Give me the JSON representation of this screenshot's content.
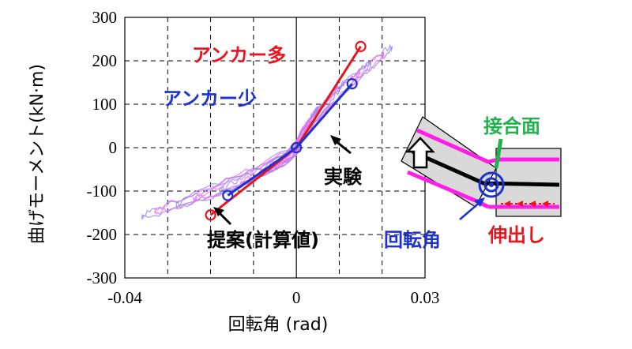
{
  "chart_data": {
    "type": "line",
    "xlabel": "回転角 (rad)",
    "ylabel": "曲げモーメント(kN·m)",
    "xlim": [
      -0.04,
      0.03
    ],
    "ylim": [
      -300,
      300
    ],
    "x_tick_labels": [
      "-0.04",
      "0",
      "0.03"
    ],
    "y_ticks": [
      300,
      200,
      100,
      0,
      -100,
      -200,
      -300
    ],
    "y_tick_labels": [
      "300",
      "200",
      "100",
      "0",
      "-100",
      "-200",
      "-300"
    ],
    "grid": true,
    "series": [
      {
        "name": "アンカー多",
        "color": "#e8141e",
        "points": [
          [
            -0.02,
            -155
          ],
          [
            0,
            0
          ],
          [
            0.015,
            233
          ]
        ]
      },
      {
        "name": "アンカー少",
        "color": "#1e32d2",
        "points": [
          [
            -0.016,
            -110
          ],
          [
            0,
            0
          ],
          [
            0.013,
            147
          ]
        ]
      }
    ],
    "experiment_colors": [
      "#9a8cf0",
      "#f070f0"
    ],
    "annotations": {
      "experiment": "実験",
      "proposal": "提案(計算値)"
    },
    "inset": {
      "joint_surface": "接合面",
      "rotation_angle": "回転角",
      "extension": "伸出し"
    }
  }
}
